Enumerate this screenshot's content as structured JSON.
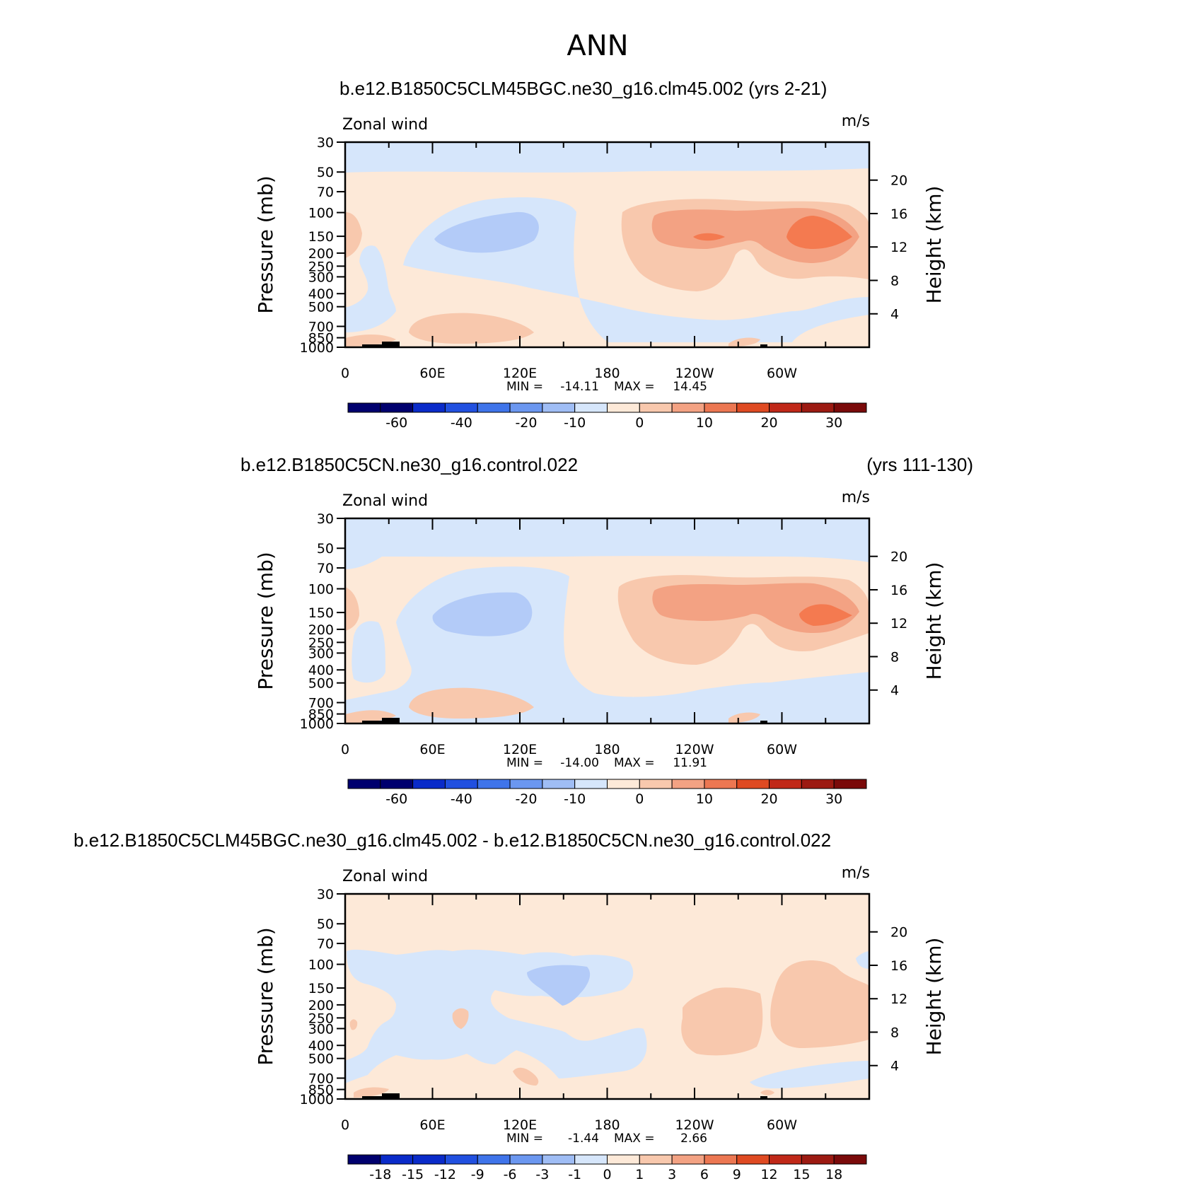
{
  "figure_title": "ANN",
  "colors": {
    "neg": [
      "#00006e",
      "#0a2bc9",
      "#2150e0",
      "#3f74ea",
      "#6b97f0",
      "#9fbdf5",
      "#d6e6fb"
    ],
    "pos": [
      "#fde9d8",
      "#f8c8ad",
      "#f3a283",
      "#ec7752",
      "#df4a22",
      "#c02818",
      "#9c1a12",
      "#7a0a0a"
    ],
    "contour_pos": [
      "#fde9d8",
      "#f8c8ad",
      "#f3a283",
      "#f47a50"
    ],
    "contour_neg": [
      "#d6e6fb",
      "#b3cbf8",
      "#9ebcf4"
    ],
    "topography": "#000000",
    "axis": "#000000"
  },
  "chart_data": [
    {
      "type": "heatmap",
      "title": "b.e12.B1850C5CLM45BGC.ne30_g16.clm45.002 (yrs 2-21)",
      "left_label": "Zonal wind",
      "units": "m/s",
      "xlabel": "",
      "ylabel": "Pressure (mb)",
      "y2label": "Height (km)",
      "x_ticks": [
        "0",
        "60E",
        "120E",
        "180",
        "120W",
        "60W"
      ],
      "y_ticks": [
        "30",
        "50",
        "70",
        "100",
        "150",
        "200",
        "250",
        "300",
        "400",
        "500",
        "700",
        "850",
        "1000"
      ],
      "y2_ticks": [
        "20",
        "16",
        "12",
        "8",
        "4"
      ],
      "stats": {
        "min_label": "MIN =",
        "min": "-14.11",
        "max_label": "MAX =",
        "max": "14.45"
      },
      "colorbar_labels": [
        "-60",
        "-40",
        "-20",
        "-10",
        "0",
        "10",
        "20",
        "30"
      ]
    },
    {
      "type": "heatmap",
      "title": "b.e12.B1850C5CN.ne30_g16.control.022",
      "title_right": "(yrs 111-130)",
      "left_label": "Zonal wind",
      "units": "m/s",
      "xlabel": "",
      "ylabel": "Pressure (mb)",
      "y2label": "Height (km)",
      "x_ticks": [
        "0",
        "60E",
        "120E",
        "180",
        "120W",
        "60W"
      ],
      "y_ticks": [
        "30",
        "50",
        "70",
        "100",
        "150",
        "200",
        "250",
        "300",
        "400",
        "500",
        "700",
        "850",
        "1000"
      ],
      "y2_ticks": [
        "20",
        "16",
        "12",
        "8",
        "4"
      ],
      "stats": {
        "min_label": "MIN =",
        "min": "-14.00",
        "max_label": "MAX =",
        "max": "11.91"
      },
      "colorbar_labels": [
        "-60",
        "-40",
        "-20",
        "-10",
        "0",
        "10",
        "20",
        "30"
      ]
    },
    {
      "type": "heatmap",
      "title": "b.e12.B1850C5CLM45BGC.ne30_g16.clm45.002 - b.e12.B1850C5CN.ne30_g16.control.022",
      "left_label": "Zonal wind",
      "units": "m/s",
      "xlabel": "",
      "ylabel": "Pressure (mb)",
      "y2label": "Height (km)",
      "x_ticks": [
        "0",
        "60E",
        "120E",
        "180",
        "120W",
        "60W"
      ],
      "y_ticks": [
        "30",
        "50",
        "70",
        "100",
        "150",
        "200",
        "250",
        "300",
        "400",
        "500",
        "700",
        "850",
        "1000"
      ],
      "y2_ticks": [
        "20",
        "16",
        "12",
        "8",
        "4"
      ],
      "stats": {
        "min_label": "MIN =",
        "min": "-1.44",
        "max_label": "MAX =",
        "max": "2.66"
      },
      "colorbar_labels": [
        "-18",
        "-15",
        "-12",
        "-9",
        "-6",
        "-3",
        "-1",
        "0",
        "1",
        "3",
        "6",
        "9",
        "12",
        "15",
        "18"
      ]
    }
  ]
}
